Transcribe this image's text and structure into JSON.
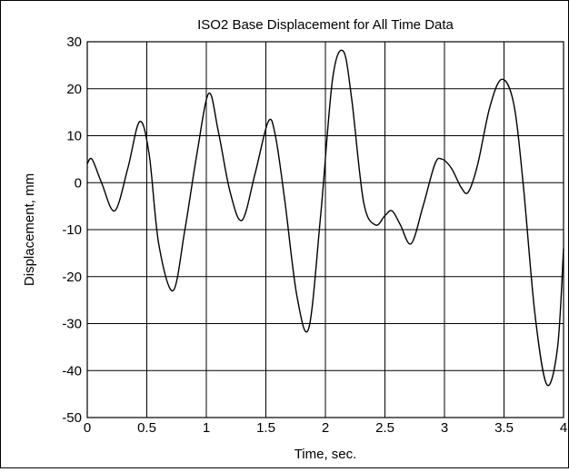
{
  "chart_data": {
    "type": "line",
    "title": "ISO2 Base Displacement for All Time Data",
    "xlabel": "Time, sec.",
    "ylabel": "Displacement, mm",
    "xlim": [
      0,
      4
    ],
    "ylim": [
      -50,
      30
    ],
    "xticks": [
      "0",
      "0.5",
      "1",
      "1.5",
      "2",
      "2.5",
      "3",
      "3.5",
      "4"
    ],
    "yticks": [
      "30",
      "20",
      "10",
      "0",
      "-10",
      "-20",
      "-30",
      "-40",
      "-50"
    ],
    "grid": true,
    "line_color": "#000000",
    "series": [
      {
        "x": [
          0,
          0.04,
          0.12,
          0.23,
          0.34,
          0.44,
          0.52,
          0.6,
          0.72,
          0.82,
          0.92,
          1.02,
          1.1,
          1.2,
          1.3,
          1.41,
          1.52,
          1.58,
          1.66,
          1.76,
          1.86,
          1.96,
          2.06,
          2.15,
          2.22,
          2.32,
          2.42,
          2.5,
          2.56,
          2.63,
          2.72,
          2.82,
          2.92,
          2.98,
          3.06,
          3.14,
          3.2,
          3.28,
          3.38,
          3.48,
          3.58,
          3.66,
          3.76,
          3.86,
          3.95,
          4.0
        ],
        "y": [
          4,
          5,
          0,
          -6,
          3,
          13,
          6,
          -13,
          -23,
          -10,
          6,
          19,
          11,
          -2,
          -8,
          2,
          13,
          10,
          -4,
          -24,
          -31,
          -7,
          22,
          28,
          18,
          -4,
          -9,
          -7,
          -6,
          -9,
          -13,
          -5,
          4,
          5,
          3,
          -1,
          -2,
          4,
          16,
          22,
          17,
          0,
          -28,
          -43,
          -35,
          -14
        ]
      }
    ]
  }
}
